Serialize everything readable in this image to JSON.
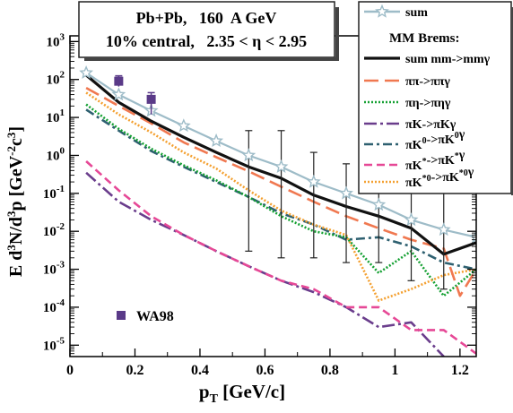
{
  "chart_data": {
    "type": "line",
    "title_lines": [
      "Pb+Pb,   160  A GeV",
      "10% central,   2.35 < η < 2.95"
    ],
    "xlabel": "p_T [GeV/c]",
    "ylabel": "E d^3N/d^3p  [GeV^-2 c^3]",
    "xlim": [
      0,
      1.25
    ],
    "ylim_log10": [
      -5.3,
      3.15
    ],
    "log_y": true,
    "x_ticks": [
      0.0,
      0.2,
      0.4,
      0.6,
      0.8,
      1.0,
      1.2
    ],
    "x_tick_labels": [
      "0",
      "0.2",
      "0.4",
      "0.6",
      "0.8",
      "1",
      "1.2"
    ],
    "y_tick_exponents": [
      -5,
      -4,
      -3,
      -2,
      -1,
      0,
      1,
      2,
      3
    ],
    "legend_heading": "MM Brems:",
    "legend_position": "top-right",
    "series": [
      {
        "name": "sum",
        "color": "#9ebcc8",
        "dash": "",
        "marker": "star",
        "x": [
          0.05,
          0.15,
          0.25,
          0.35,
          0.45,
          0.55,
          0.65,
          0.75,
          0.85,
          0.95,
          1.05,
          1.15,
          1.25
        ],
        "y": [
          150,
          40,
          15,
          6.0,
          2.4,
          1.0,
          0.5,
          0.2,
          0.1,
          0.05,
          0.02,
          0.011,
          0.007
        ],
        "err_low": [
          null,
          null,
          null,
          null,
          null,
          0.003,
          0.002,
          0.002,
          0.0015,
          0.0015,
          0.0005,
          0.0003,
          null
        ],
        "err_high": [
          null,
          null,
          null,
          null,
          null,
          4.5,
          4.5,
          1.2,
          0.6,
          0.3,
          0.25,
          0.2,
          null
        ]
      },
      {
        "name": "sum mm->mmγ",
        "color": "#111111",
        "dash": "",
        "x": [
          0.05,
          0.15,
          0.25,
          0.35,
          0.45,
          0.55,
          0.65,
          0.75,
          0.85,
          0.95,
          1.05,
          1.15,
          1.25
        ],
        "y": [
          130,
          25,
          8,
          3,
          1.2,
          0.5,
          0.25,
          0.09,
          0.045,
          0.025,
          0.012,
          0.0025,
          0.005
        ]
      },
      {
        "name": "ππ->ππγ",
        "color": "#f07850",
        "dash": "16 7",
        "x": [
          0.05,
          0.15,
          0.25,
          0.35,
          0.45,
          0.55,
          0.65,
          0.75,
          0.85,
          0.95,
          1.05,
          1.15,
          1.2,
          1.25
        ],
        "y": [
          60,
          20,
          7,
          2.2,
          0.9,
          0.38,
          0.15,
          0.06,
          0.025,
          0.012,
          0.006,
          0.0035,
          0.0002,
          0.001
        ]
      },
      {
        "name": "πη->πηγ",
        "color": "#14a032",
        "dash": "2 2",
        "x": [
          0.05,
          0.15,
          0.25,
          0.35,
          0.45,
          0.55,
          0.65,
          0.75,
          0.85,
          0.95,
          1.05,
          1.15,
          1.25
        ],
        "y": [
          22,
          5,
          1.5,
          0.55,
          0.22,
          0.08,
          0.025,
          0.01,
          0.007,
          0.0008,
          0.003,
          0.0002,
          0.001
        ]
      },
      {
        "name": "πK->πKγ",
        "color": "#6a3d8c",
        "dash": "14 4 3 4",
        "x": [
          0.05,
          0.15,
          0.25,
          0.35,
          0.45,
          0.55,
          0.65,
          0.75,
          0.85,
          0.95,
          1.05,
          1.15
        ],
        "y": [
          0.35,
          0.06,
          0.02,
          0.008,
          0.003,
          0.0012,
          0.0005,
          0.00025,
          0.0001,
          3e-05,
          4e-05,
          5e-06
        ]
      },
      {
        "name": "πK^0->πK^0γ",
        "color": "#2e6070",
        "dash": "10 4 3 4",
        "x": [
          0.05,
          0.15,
          0.25,
          0.35,
          0.45,
          0.55,
          0.65,
          0.75,
          0.85,
          0.95,
          1.05,
          1.15,
          1.25
        ],
        "y": [
          16,
          4.5,
          1.3,
          0.5,
          0.2,
          0.08,
          0.03,
          0.015,
          0.006,
          0.007,
          0.004,
          0.0015,
          0.001
        ]
      },
      {
        "name": "πK^*->πK^*γ",
        "color": "#e64896",
        "dash": "9 5",
        "x": [
          0.05,
          0.15,
          0.25,
          0.35,
          0.45,
          0.55,
          0.65,
          0.75,
          0.85,
          0.95,
          1.05,
          1.15,
          1.25
        ],
        "y": [
          0.7,
          0.12,
          0.025,
          0.008,
          0.003,
          0.0012,
          0.0005,
          0.0003,
          0.0001,
          0.0001,
          2.5e-05,
          2.5e-05,
          6e-06
        ]
      },
      {
        "name": "πK^*0->πK^*0γ",
        "color": "#f4a030",
        "dash": "2 2",
        "x": [
          0.05,
          0.15,
          0.25,
          0.35,
          0.45,
          0.55,
          0.65,
          0.75,
          0.85,
          0.95,
          1.05,
          1.15,
          1.25
        ],
        "y": [
          45,
          12,
          4,
          1.2,
          0.45,
          0.12,
          0.035,
          0.015,
          0.008,
          0.00015,
          0.0003,
          0.0007,
          0.001
        ]
      }
    ],
    "points": {
      "name": "WA98",
      "color": "#5a3a88",
      "marker": "square",
      "x": [
        0.15,
        0.25
      ],
      "y": [
        90,
        30
      ],
      "err_low": [
        65,
        12
      ],
      "err_high": [
        125,
        45
      ]
    }
  }
}
